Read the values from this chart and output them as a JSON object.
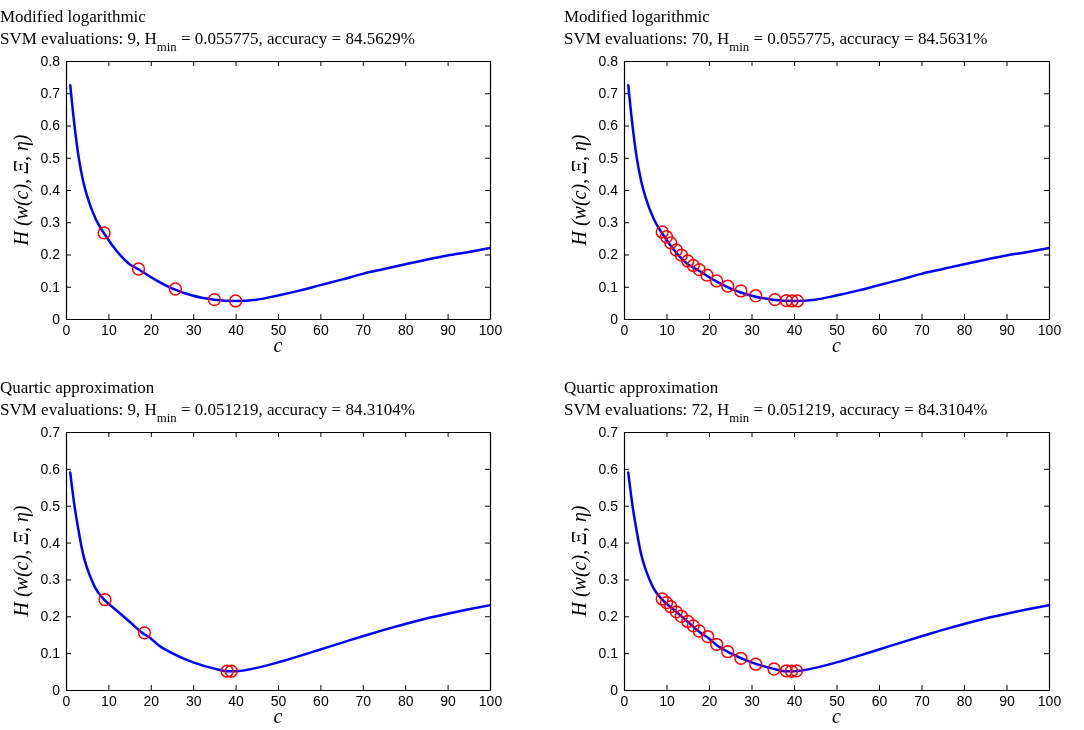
{
  "chart_data": [
    {
      "type": "line",
      "title": "Modified logarithmic",
      "subtitle": "SVM evaluations: 9, H$_{min}$ = 0.055775, accuracy = 84.5629%",
      "xlabel": "c",
      "ylabel": "H (w(c), Ξ, η)",
      "xlim": [
        0,
        100
      ],
      "xticks": [
        0,
        10,
        20,
        30,
        40,
        50,
        60,
        70,
        80,
        90,
        100
      ],
      "ylim": [
        0,
        0.8
      ],
      "yticks": [
        0,
        0.1,
        0.2,
        0.3,
        0.4,
        0.5,
        0.6,
        0.7,
        0.8
      ],
      "series": [
        {
          "color": "#0000ff",
          "marker": "none",
          "x": [
            1,
            2,
            3,
            4,
            5,
            7,
            9,
            12,
            15,
            17,
            20,
            25,
            30,
            35,
            40,
            45,
            50,
            55,
            60,
            65,
            70,
            75,
            80,
            85,
            90,
            95,
            100
          ],
          "values": [
            0.725,
            0.6,
            0.5,
            0.43,
            0.38,
            0.31,
            0.265,
            0.21,
            0.17,
            0.155,
            0.13,
            0.095,
            0.072,
            0.06,
            0.056,
            0.06,
            0.073,
            0.088,
            0.105,
            0.122,
            0.14,
            0.155,
            0.17,
            0.184,
            0.197,
            0.208,
            0.22
          ]
        },
        {
          "type": "scatter",
          "color": "#ff0000",
          "marker": "circle",
          "x": [
            9,
            17.1,
            25.8,
            35,
            40
          ],
          "values": [
            0.267,
            0.155,
            0.093,
            0.06,
            0.056
          ]
        }
      ]
    },
    {
      "type": "line",
      "title": "Modified logarithmic",
      "subtitle": "SVM evaluations: 70, H$_{min}$ = 0.055775, accuracy = 84.5631%",
      "xlabel": "c",
      "ylabel": "H (w(c), Ξ, η)",
      "xlim": [
        0,
        100
      ],
      "xticks": [
        0,
        10,
        20,
        30,
        40,
        50,
        60,
        70,
        80,
        90,
        100
      ],
      "ylim": [
        0,
        0.8
      ],
      "yticks": [
        0,
        0.1,
        0.2,
        0.3,
        0.4,
        0.5,
        0.6,
        0.7,
        0.8
      ],
      "series": [
        {
          "color": "#0000ff",
          "marker": "none",
          "x": [
            1,
            2,
            3,
            4,
            5,
            7,
            9,
            12,
            15,
            17,
            20,
            25,
            30,
            35,
            40,
            45,
            50,
            55,
            60,
            65,
            70,
            75,
            80,
            85,
            90,
            95,
            100
          ],
          "values": [
            0.725,
            0.6,
            0.5,
            0.43,
            0.38,
            0.31,
            0.265,
            0.21,
            0.17,
            0.155,
            0.13,
            0.095,
            0.072,
            0.06,
            0.056,
            0.06,
            0.073,
            0.088,
            0.105,
            0.122,
            0.14,
            0.155,
            0.17,
            0.184,
            0.197,
            0.208,
            0.22
          ]
        },
        {
          "type": "scatter",
          "color": "#ff0000",
          "marker": "circle",
          "x": [
            9,
            10,
            11,
            12.3,
            13.5,
            15,
            16.3,
            17.7,
            19.5,
            21.8,
            24.4,
            27.5,
            31,
            35.5,
            38.2,
            39.5,
            40.8
          ],
          "values": [
            0.27,
            0.255,
            0.236,
            0.214,
            0.198,
            0.18,
            0.166,
            0.153,
            0.136,
            0.118,
            0.102,
            0.087,
            0.072,
            0.06,
            0.057,
            0.056,
            0.056
          ]
        }
      ]
    },
    {
      "type": "line",
      "title": "Quartic approximation",
      "subtitle": "SVM evaluations: 9, H$_{min}$ = 0.051219, accuracy = 84.3104%",
      "xlabel": "c",
      "ylabel": "H (w(c), Ξ, η)",
      "xlim": [
        0,
        100
      ],
      "xticks": [
        0,
        10,
        20,
        30,
        40,
        50,
        60,
        70,
        80,
        90,
        100
      ],
      "ylim": [
        0,
        0.7
      ],
      "yticks": [
        0,
        0.1,
        0.2,
        0.3,
        0.4,
        0.5,
        0.6,
        0.7
      ],
      "series": [
        {
          "color": "#0000ff",
          "marker": "none",
          "x": [
            1,
            2,
            3,
            4,
            5,
            6,
            7,
            9,
            12,
            15,
            18,
            20,
            22,
            25,
            30,
            35,
            38,
            40,
            45,
            50,
            55,
            60,
            65,
            70,
            75,
            80,
            85,
            90,
            95,
            100
          ],
          "values": [
            0.59,
            0.5,
            0.43,
            0.37,
            0.33,
            0.3,
            0.275,
            0.245,
            0.215,
            0.185,
            0.155,
            0.14,
            0.12,
            0.1,
            0.075,
            0.058,
            0.051,
            0.051,
            0.06,
            0.075,
            0.092,
            0.11,
            0.128,
            0.146,
            0.163,
            0.179,
            0.194,
            0.207,
            0.219,
            0.23
          ]
        },
        {
          "type": "scatter",
          "color": "#ff0000",
          "marker": "circle",
          "x": [
            9.2,
            18.5,
            38,
            39
          ],
          "values": [
            0.245,
            0.155,
            0.051,
            0.051
          ]
        }
      ]
    },
    {
      "type": "line",
      "title": "Quartic approximation",
      "subtitle": "SVM evaluations: 72, H$_{min}$ = 0.051219, accuracy = 84.3104%",
      "xlabel": "c",
      "ylabel": "H (w(c), Ξ, η)",
      "xlim": [
        0,
        100
      ],
      "xticks": [
        0,
        10,
        20,
        30,
        40,
        50,
        60,
        70,
        80,
        90,
        100
      ],
      "ylim": [
        0,
        0.7
      ],
      "yticks": [
        0,
        0.1,
        0.2,
        0.3,
        0.4,
        0.5,
        0.6,
        0.7
      ],
      "series": [
        {
          "color": "#0000ff",
          "marker": "none",
          "x": [
            1,
            2,
            3,
            4,
            5,
            6,
            7,
            9,
            12,
            15,
            18,
            20,
            22,
            25,
            30,
            35,
            38,
            40,
            45,
            50,
            55,
            60,
            65,
            70,
            75,
            80,
            85,
            90,
            95,
            100
          ],
          "values": [
            0.59,
            0.5,
            0.43,
            0.37,
            0.33,
            0.3,
            0.275,
            0.245,
            0.215,
            0.185,
            0.155,
            0.14,
            0.12,
            0.1,
            0.075,
            0.058,
            0.051,
            0.051,
            0.06,
            0.075,
            0.092,
            0.11,
            0.128,
            0.146,
            0.163,
            0.179,
            0.194,
            0.207,
            0.219,
            0.23
          ]
        },
        {
          "type": "scatter",
          "color": "#ff0000",
          "marker": "circle",
          "x": [
            9,
            10,
            11,
            12.3,
            13.5,
            15,
            16.3,
            17.7,
            19.7,
            21.8,
            24.4,
            27.5,
            31,
            35.3,
            38.2,
            39.4,
            40.6
          ],
          "values": [
            0.247,
            0.237,
            0.226,
            0.212,
            0.2,
            0.186,
            0.174,
            0.16,
            0.145,
            0.124,
            0.104,
            0.086,
            0.07,
            0.057,
            0.052,
            0.051,
            0.052
          ]
        }
      ]
    }
  ]
}
